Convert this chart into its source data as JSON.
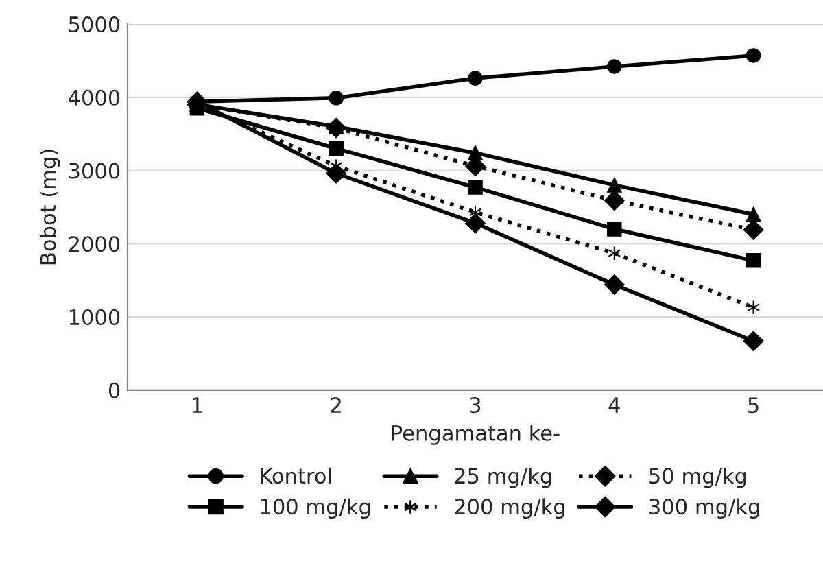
{
  "chart_data": {
    "type": "line",
    "xlabel": "Pengamatan ke-",
    "ylabel": "Bobot (mg)",
    "categories": [
      "1",
      "2",
      "3",
      "4",
      "5"
    ],
    "series": [
      {
        "name": "Kontrol",
        "color": "#000000",
        "marker": "circle",
        "line_style": "solid",
        "values": [
          3940,
          3990,
          4260,
          4420,
          4570
        ]
      },
      {
        "name": "25 mg/kg",
        "color": "#000000",
        "marker": "triangle",
        "line_style": "solid",
        "values": [
          3900,
          3600,
          3240,
          2800,
          2400
        ]
      },
      {
        "name": "50 mg/kg",
        "color": "#000000",
        "marker": "diamond",
        "line_style": "dotted",
        "values": [
          3900,
          3580,
          3060,
          2590,
          2190
        ]
      },
      {
        "name": "100 mg/kg",
        "color": "#000000",
        "marker": "square",
        "line_style": "solid",
        "values": [
          3850,
          3300,
          2770,
          2200,
          1770
        ]
      },
      {
        "name": "200 mg/kg",
        "color": "#000000",
        "marker": "cross",
        "line_style": "dotted",
        "values": [
          3920,
          3060,
          2430,
          1870,
          1130
        ]
      },
      {
        "name": "300 mg/kg",
        "color": "#000000",
        "marker": "diamond",
        "line_style": "solid",
        "values": [
          3940,
          2960,
          2280,
          1440,
          670
        ]
      }
    ],
    "ylim": [
      0,
      5000
    ],
    "yticks": [
      0,
      1000,
      2000,
      3000,
      4000,
      5000
    ],
    "grid": "y",
    "legend": "bottom"
  }
}
